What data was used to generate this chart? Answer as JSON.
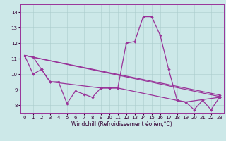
{
  "xlabel": "Windchill (Refroidissement éolien,°C)",
  "x_ticks": [
    0,
    1,
    2,
    3,
    4,
    5,
    6,
    7,
    8,
    9,
    10,
    11,
    12,
    13,
    14,
    15,
    16,
    17,
    18,
    19,
    20,
    21,
    22,
    23
  ],
  "ylim": [
    7.5,
    14.5
  ],
  "yticks": [
    8,
    9,
    10,
    11,
    12,
    13,
    14
  ],
  "xlim": [
    -0.5,
    23.5
  ],
  "bg_color": "#cce8e8",
  "line_color": "#993399",
  "series0_x": [
    0,
    1,
    2,
    3,
    4,
    5,
    6,
    7,
    8,
    9,
    10,
    11,
    12,
    13,
    14,
    15,
    16,
    17,
    18,
    19,
    20,
    21,
    22,
    23
  ],
  "series0_y": [
    11.2,
    11.1,
    10.3,
    9.5,
    9.5,
    8.1,
    8.9,
    8.7,
    8.5,
    9.1,
    9.1,
    9.1,
    12.0,
    12.1,
    13.7,
    13.7,
    12.5,
    10.3,
    8.3,
    8.2,
    7.7,
    8.3,
    7.7,
    8.5
  ],
  "series1_x": [
    0,
    1,
    2,
    3,
    9,
    10,
    11,
    18,
    19,
    23
  ],
  "series1_y": [
    11.2,
    10.0,
    10.3,
    9.5,
    9.1,
    9.1,
    9.1,
    8.3,
    8.2,
    8.5
  ],
  "series2_x": [
    0,
    23
  ],
  "series2_y": [
    11.2,
    8.55
  ],
  "series3_x": [
    0,
    23
  ],
  "series3_y": [
    11.2,
    8.65
  ],
  "tick_fontsize": 5,
  "xlabel_fontsize": 5.5
}
